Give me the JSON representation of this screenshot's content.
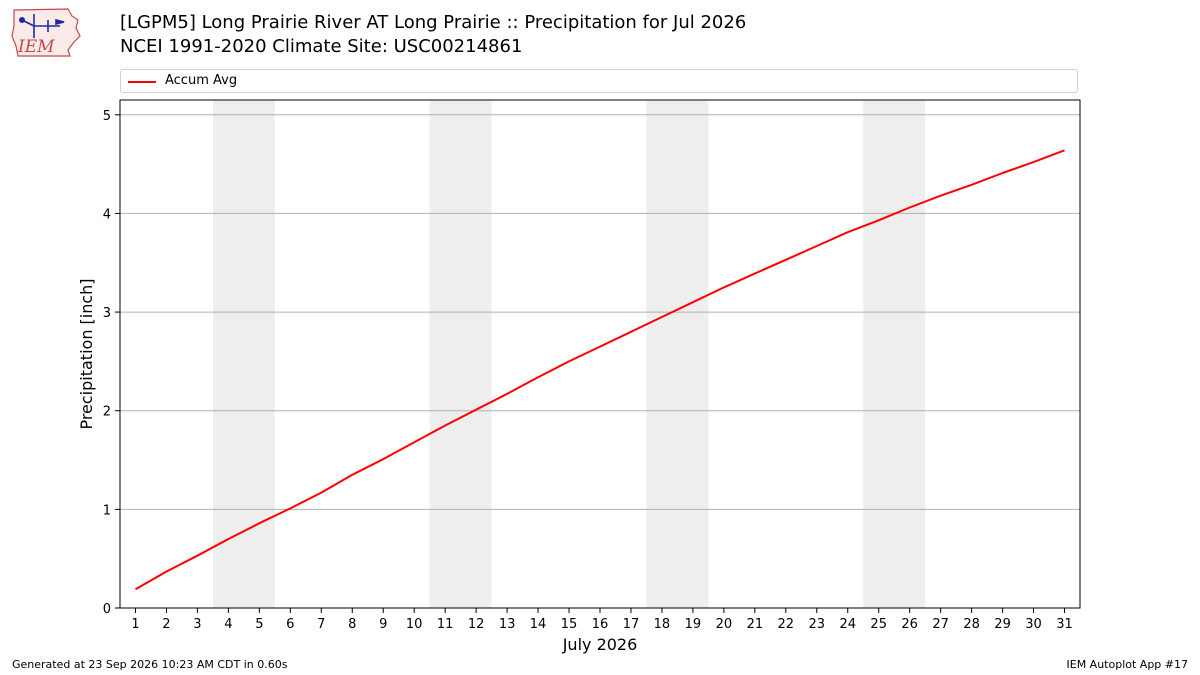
{
  "logo": {
    "text": "IEM"
  },
  "header": {
    "title_line1": "[LGPM5] Long Prairie River  AT Long Prairie :: Precipitation for Jul 2026",
    "title_line2": "NCEI 1991-2020 Climate Site: USC00214861"
  },
  "legend": {
    "label": "Accum Avg",
    "color": "#ff0000"
  },
  "footer": {
    "left": "Generated at 23 Sep 2026 10:23 AM CDT in 0.60s",
    "right": "IEM Autoplot App #17"
  },
  "chart_data": {
    "type": "line",
    "title": "[LGPM5] Long Prairie River  AT Long Prairie :: Precipitation for Jul 2026",
    "subtitle": "NCEI 1991-2020 Climate Site: USC00214861",
    "xlabel": "July 2026",
    "ylabel": "Precipitation [inch]",
    "x": [
      1,
      2,
      3,
      4,
      5,
      6,
      7,
      8,
      9,
      10,
      11,
      12,
      13,
      14,
      15,
      16,
      17,
      18,
      19,
      20,
      21,
      22,
      23,
      24,
      25,
      26,
      27,
      28,
      29,
      30,
      31
    ],
    "xlim": [
      0.5,
      31.5
    ],
    "ylim": [
      0,
      5.15
    ],
    "yticks": [
      0,
      1,
      2,
      3,
      4,
      5
    ],
    "grid": "horizontal",
    "legend_position": "top",
    "weekend_shading": [
      [
        3.5,
        5.5
      ],
      [
        10.5,
        12.5
      ],
      [
        17.5,
        19.5
      ],
      [
        24.5,
        26.5
      ]
    ],
    "shading_color": "#eeeeee",
    "series": [
      {
        "name": "Accum Avg",
        "color": "#ff0000",
        "values": [
          0.19,
          0.37,
          0.53,
          0.7,
          0.86,
          1.01,
          1.17,
          1.35,
          1.51,
          1.68,
          1.85,
          2.01,
          2.17,
          2.34,
          2.5,
          2.65,
          2.8,
          2.95,
          3.1,
          3.25,
          3.39,
          3.53,
          3.67,
          3.81,
          3.93,
          4.06,
          4.18,
          4.29,
          4.41,
          4.52,
          4.64
        ]
      }
    ]
  }
}
